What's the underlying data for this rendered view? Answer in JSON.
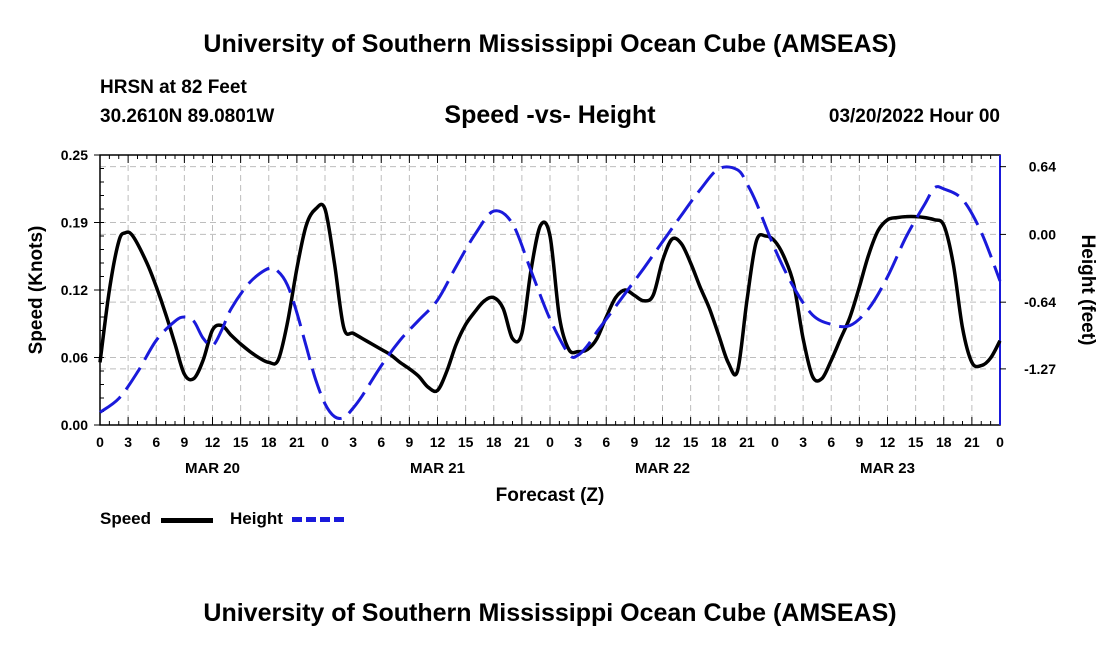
{
  "header": {
    "title": "University of Southern Mississippi Ocean Cube (AMSEAS)",
    "station": "HRSN at 82 Feet",
    "coords": "30.2610N  89.0801W",
    "subtitle": "Speed -vs- Height",
    "datetime": "03/20/2022 Hour 00"
  },
  "footer": {
    "title": "University of Southern Mississippi Ocean Cube (AMSEAS)"
  },
  "legend": {
    "speed": "Speed",
    "height": "Height"
  },
  "colors": {
    "speed": "#000000",
    "height": "#1a1adb",
    "grid": "#bdbdbd"
  },
  "chart_data": {
    "type": "line",
    "title": "Speed -vs- Height",
    "xlabel": "Forecast (Z)",
    "ylabel_left": "Speed (Knots)",
    "ylabel_right": "Height (feet)",
    "xlim": [
      0,
      96
    ],
    "ylim_left": [
      0,
      0.25
    ],
    "ylim_right": [
      -1.8,
      0.75
    ],
    "left_ticks": [
      "0.00",
      "0.06",
      "0.12",
      "0.19",
      "0.25"
    ],
    "left_tick_values": [
      0,
      0.0625,
      0.125,
      0.1875,
      0.25
    ],
    "right_ticks": [
      "0.64",
      "0.00",
      "-0.64",
      "-1.27"
    ],
    "right_tick_values": [
      0.64,
      0.0,
      -0.64,
      -1.27
    ],
    "x_ticks": [
      "0",
      "3",
      "6",
      "9",
      "12",
      "15",
      "18",
      "21",
      "0",
      "3",
      "6",
      "9",
      "12",
      "15",
      "18",
      "21",
      "0",
      "3",
      "6",
      "9",
      "12",
      "15",
      "18",
      "21",
      "0",
      "3",
      "6",
      "9",
      "12",
      "15",
      "18",
      "21",
      "0"
    ],
    "day_labels": [
      {
        "label": "MAR 20",
        "hour": 12
      },
      {
        "label": "MAR 21",
        "hour": 36
      },
      {
        "label": "MAR 22",
        "hour": 60
      },
      {
        "label": "MAR 23",
        "hour": 84
      }
    ],
    "series": [
      {
        "name": "Speed",
        "axis": "left",
        "style": "solid",
        "x": [
          0,
          1,
          2,
          2.7,
          3.5,
          5,
          6,
          7,
          8,
          9,
          10,
          11,
          12,
          13,
          14,
          15,
          16,
          17,
          18,
          19,
          20,
          21,
          22,
          23,
          24,
          25,
          26,
          27,
          28,
          29,
          30,
          31,
          32,
          33,
          34,
          35,
          36,
          37,
          38,
          39,
          40,
          41,
          42,
          43,
          44,
          45,
          46,
          47,
          48,
          49,
          50,
          51,
          52,
          53,
          54,
          55,
          56,
          57,
          58,
          59,
          60,
          61,
          62,
          63,
          64,
          65,
          66,
          67,
          68,
          69,
          70,
          71,
          72,
          73,
          74,
          75,
          76,
          77,
          78,
          79,
          80,
          81,
          82,
          83,
          84,
          85,
          86,
          87,
          88,
          89,
          90,
          91,
          92,
          93,
          94,
          95,
          96
        ],
        "values": [
          0.058,
          0.125,
          0.17,
          0.178,
          0.175,
          0.15,
          0.128,
          0.103,
          0.075,
          0.047,
          0.043,
          0.06,
          0.088,
          0.092,
          0.083,
          0.075,
          0.068,
          0.062,
          0.058,
          0.06,
          0.095,
          0.145,
          0.185,
          0.2,
          0.2,
          0.15,
          0.09,
          0.085,
          0.08,
          0.075,
          0.07,
          0.065,
          0.058,
          0.052,
          0.045,
          0.035,
          0.032,
          0.05,
          0.075,
          0.093,
          0.105,
          0.115,
          0.118,
          0.108,
          0.08,
          0.085,
          0.145,
          0.185,
          0.175,
          0.1,
          0.07,
          0.068,
          0.07,
          0.08,
          0.1,
          0.118,
          0.125,
          0.12,
          0.115,
          0.12,
          0.152,
          0.172,
          0.168,
          0.15,
          0.128,
          0.108,
          0.083,
          0.058,
          0.05,
          0.115,
          0.17,
          0.175,
          0.17,
          0.155,
          0.13,
          0.08,
          0.045,
          0.043,
          0.06,
          0.08,
          0.1,
          0.128,
          0.158,
          0.18,
          0.19,
          0.192,
          0.193,
          0.193,
          0.192,
          0.19,
          0.185,
          0.15,
          0.09,
          0.058,
          0.055,
          0.062,
          0.078
        ]
      },
      {
        "name": "Height",
        "axis": "right",
        "style": "dashed",
        "x": [
          0,
          2,
          4,
          6,
          8,
          9,
          10,
          11,
          12,
          13,
          14,
          16,
          18,
          19,
          20,
          21,
          22,
          23,
          24,
          25,
          26,
          27,
          28,
          30,
          32,
          34,
          36,
          38,
          40,
          42,
          44,
          46,
          48,
          50,
          51,
          52,
          53,
          54,
          56,
          58,
          60,
          62,
          64,
          66,
          68,
          69,
          70,
          72,
          74,
          76,
          78,
          80,
          82,
          84,
          86,
          88,
          89,
          90,
          92,
          94,
          96
        ],
        "values": [
          -1.68,
          -1.55,
          -1.3,
          -1.0,
          -0.82,
          -0.78,
          -0.82,
          -0.98,
          -1.05,
          -0.9,
          -0.7,
          -0.45,
          -0.32,
          -0.35,
          -0.48,
          -0.74,
          -1.06,
          -1.37,
          -1.6,
          -1.72,
          -1.73,
          -1.64,
          -1.52,
          -1.24,
          -1.0,
          -0.81,
          -0.62,
          -0.3,
          0.0,
          0.22,
          0.1,
          -0.35,
          -0.8,
          -1.13,
          -1.14,
          -1.05,
          -0.92,
          -0.8,
          -0.56,
          -0.32,
          -0.07,
          0.18,
          0.42,
          0.62,
          0.61,
          0.48,
          0.3,
          -0.14,
          -0.5,
          -0.76,
          -0.85,
          -0.86,
          -0.7,
          -0.4,
          -0.02,
          0.29,
          0.44,
          0.43,
          0.33,
          0.02,
          -0.44
        ]
      }
    ]
  }
}
